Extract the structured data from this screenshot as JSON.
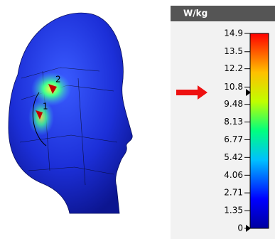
{
  "colorbar": {
    "unit": "W/kg",
    "ticks": [
      14.9,
      13.5,
      12.2,
      10.8,
      9.48,
      8.13,
      6.77,
      5.42,
      4.06,
      2.71,
      1.35,
      0
    ]
  },
  "head": {
    "points": [
      "2",
      "1"
    ]
  }
}
